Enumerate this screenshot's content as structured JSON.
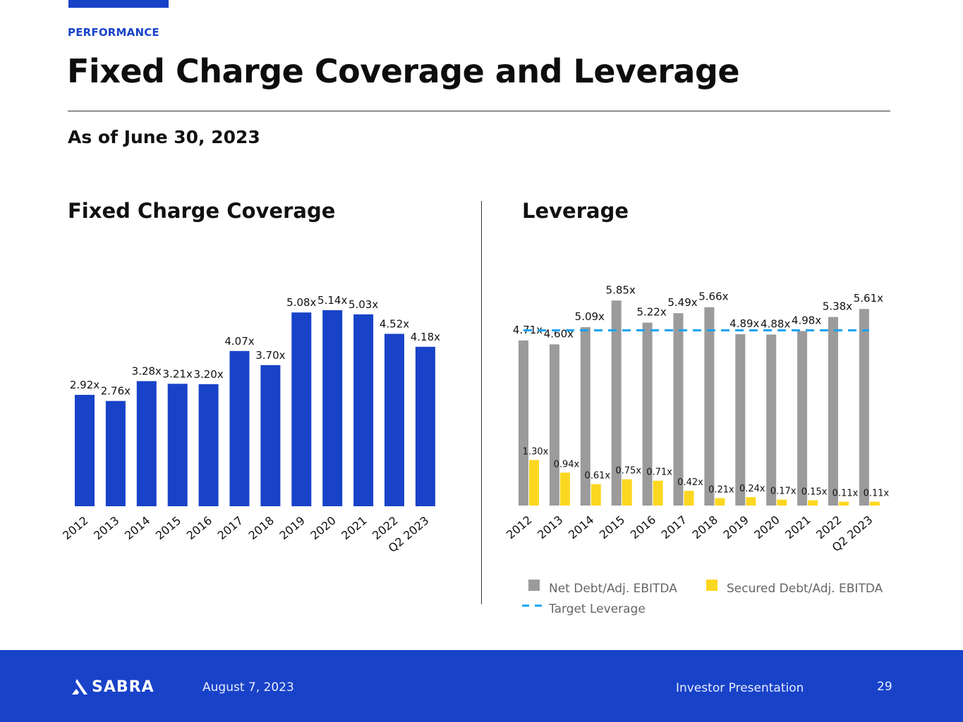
{
  "header": {
    "section": "PERFORMANCE",
    "title": "Fixed Charge Coverage and Leverage",
    "as_of": "As of June 30, 2023"
  },
  "colors": {
    "brand_blue": "#1842c8",
    "net_debt_gray": "#9b9b9b",
    "secured_yellow": "#fcd720",
    "target_blue": "#1aa3ef"
  },
  "chart_data": [
    {
      "type": "bar",
      "title": "Fixed Charge Coverage",
      "categories": [
        "2012",
        "2013",
        "2014",
        "2015",
        "2016",
        "2017",
        "2018",
        "2019",
        "2020",
        "2021",
        "2022",
        "Q2 2023"
      ],
      "values": [
        2.92,
        2.76,
        3.28,
        3.21,
        3.2,
        4.07,
        3.7,
        5.08,
        5.14,
        5.03,
        4.52,
        4.18
      ],
      "data_labels": [
        "2.92x",
        "2.76x",
        "3.28x",
        "3.21x",
        "3.20x",
        "4.07x",
        "3.70x",
        "5.08x",
        "5.14x",
        "5.03x",
        "4.52x",
        "4.18x"
      ],
      "xlabel": "",
      "ylabel": "",
      "ylim": [
        0,
        6
      ],
      "grid": false
    },
    {
      "type": "bar",
      "title": "Leverage",
      "categories": [
        "2012",
        "2013",
        "2014",
        "2015",
        "2016",
        "2017",
        "2018",
        "2019",
        "2020",
        "2021",
        "2022",
        "Q2 2023"
      ],
      "series": [
        {
          "name": "Net Debt/Adj. EBITDA",
          "values": [
            4.71,
            4.6,
            5.09,
            5.85,
            5.22,
            5.49,
            5.66,
            4.89,
            4.88,
            4.98,
            5.38,
            5.61
          ],
          "data_labels": [
            "4.71x",
            "4.60x",
            "5.09x",
            "5.85x",
            "5.22x",
            "5.49x",
            "5.66x",
            "4.89x",
            "4.88x",
            "4.98x",
            "5.38x",
            "5.61x"
          ]
        },
        {
          "name": "Secured Debt/Adj. EBITDA",
          "values": [
            1.3,
            0.94,
            0.61,
            0.75,
            0.71,
            0.42,
            0.21,
            0.24,
            0.17,
            0.15,
            0.11,
            0.11
          ],
          "data_labels": [
            "1.30x",
            "0.94x",
            "0.61x",
            "0.75x",
            "0.71x",
            "0.42x",
            "0.21x",
            "0.24x",
            "0.17x",
            "0.15x",
            "0.11x",
            "0.11x"
          ]
        }
      ],
      "reference_line": {
        "name": "Target Leverage",
        "value": 5.0,
        "style": "dashed"
      },
      "legend": [
        "Net Debt/Adj. EBITDA",
        "Secured Debt/Adj. EBITDA",
        "Target Leverage"
      ],
      "legend_placement": "bottom",
      "xlabel": "",
      "ylabel": "",
      "ylim": [
        0,
        7
      ],
      "grid": false
    }
  ],
  "footer": {
    "logo_text": "SABRA",
    "date": "August 7, 2023",
    "document": "Investor Presentation",
    "page": "29"
  }
}
